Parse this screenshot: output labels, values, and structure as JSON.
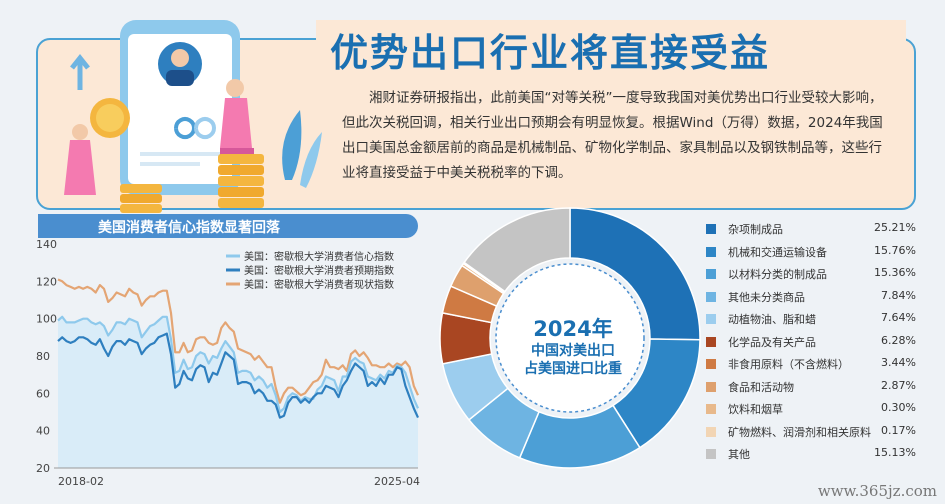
{
  "header": {
    "title": "优势出口行业将直接受益",
    "paragraph": "湘财证券研报指出，此前美国“对等关税”一度导致我国对美优势出口行业受较大影响，但此次关税回调，相关行业出口预期会有明显恢复。根据Wind（万得）数据，2024年我国出口美国总金额居前的商品是机械制品、矿物化学制品、家具制品以及钢铁制品等，这些行业将直接受益于中美关税税率的下调。"
  },
  "watermark": "www.365jz.com",
  "donut_center": {
    "year": "2024年",
    "line1": "中国对美出口",
    "line2": "占美国进口比重"
  },
  "chart_data": [
    {
      "type": "line",
      "title": "美国消费者信心指数显著回落",
      "x_start_label": "2018-02",
      "x_end_label": "2025-04",
      "ylim": [
        20,
        140
      ],
      "yticks": [
        20,
        40,
        60,
        80,
        100,
        120,
        140
      ],
      "grid": false,
      "legend_position": "top-right",
      "series": [
        {
          "name": "美国：密歇根大学消费者信心指数",
          "color": "#8ec9ec",
          "values": [
            99,
            101,
            98,
            98,
            98,
            99,
            100,
            100,
            98,
            97,
            98,
            96,
            91,
            94,
            98,
            98,
            97,
            100,
            99,
            98,
            90,
            93,
            96,
            97,
            99,
            101,
            101,
            89,
            71,
            72,
            78,
            73,
            74,
            80,
            82,
            81,
            76,
            80,
            79,
            84,
            88,
            85,
            82,
            71,
            72,
            72,
            71,
            67,
            69,
            67,
            63,
            65,
            59,
            50,
            52,
            58,
            60,
            59,
            56,
            58,
            57,
            57,
            62,
            64,
            69,
            68,
            67,
            61,
            69,
            69,
            77,
            79,
            77,
            76,
            69,
            68,
            67,
            70,
            68,
            72,
            71,
            75,
            74,
            71,
            64,
            57,
            52
          ]
        },
        {
          "name": "美国：密歇根大学消费者预期指数",
          "color": "#2e7fbf",
          "values": [
            88,
            90,
            88,
            87,
            88,
            90,
            90,
            89,
            87,
            86,
            89,
            84,
            80,
            85,
            88,
            88,
            86,
            89,
            88,
            87,
            81,
            84,
            86,
            87,
            90,
            91,
            92,
            81,
            63,
            65,
            72,
            68,
            67,
            73,
            75,
            74,
            66,
            71,
            70,
            76,
            82,
            80,
            78,
            65,
            66,
            66,
            65,
            60,
            62,
            60,
            56,
            56,
            54,
            47,
            48,
            55,
            58,
            58,
            55,
            57,
            55,
            58,
            60,
            60,
            64,
            63,
            62,
            58,
            64,
            67,
            72,
            76,
            74,
            72,
            64,
            66,
            64,
            68,
            65,
            70,
            70,
            74,
            73,
            64,
            58,
            52,
            47
          ]
        },
        {
          "name": "美国：密歇根大学消费者现状指数",
          "color": "#e4a574",
          "values": [
            121,
            120,
            118,
            117,
            116,
            117,
            116,
            117,
            116,
            114,
            118,
            116,
            109,
            111,
            114,
            113,
            112,
            116,
            114,
            113,
            107,
            110,
            112,
            112,
            114,
            115,
            115,
            103,
            82,
            82,
            87,
            82,
            83,
            89,
            90,
            90,
            87,
            86,
            87,
            95,
            98,
            95,
            93,
            84,
            83,
            82,
            81,
            78,
            80,
            77,
            74,
            74,
            63,
            55,
            60,
            63,
            63,
            61,
            59,
            60,
            63,
            66,
            67,
            70,
            78,
            74,
            74,
            73,
            75,
            72,
            81,
            83,
            80,
            82,
            79,
            75,
            75,
            74,
            74,
            76,
            74,
            76,
            75,
            77,
            74,
            64,
            59
          ]
        }
      ]
    },
    {
      "type": "pie",
      "categories": [
        "杂项制成品",
        "机械和交通运输设备",
        "以材料分类的制成品",
        "其他未分类商品",
        "动植物油、脂和蜡",
        "化学品及有关产品",
        "非食用原料（不含燃料）",
        "食品和活动物",
        "饮料和烟草",
        "矿物燃料、润滑剂和相关原料",
        "其他"
      ],
      "values": [
        25.21,
        15.76,
        15.36,
        7.84,
        7.64,
        6.28,
        3.44,
        2.87,
        0.3,
        0.17,
        15.13
      ],
      "value_labels": [
        "25.21%",
        "15.76%",
        "15.36%",
        "7.84%",
        "7.64%",
        "6.28%",
        "3.44%",
        "2.87%",
        "0.30%",
        "0.17%",
        "15.13%"
      ],
      "colors": [
        "#1e71b6",
        "#2d86c6",
        "#4c9fd6",
        "#6eb4e2",
        "#9ccdee",
        "#a94622",
        "#cf7a43",
        "#dea06d",
        "#e8b98b",
        "#f2d5b4",
        "#c4c4c4"
      ],
      "legend_position": "right"
    }
  ]
}
